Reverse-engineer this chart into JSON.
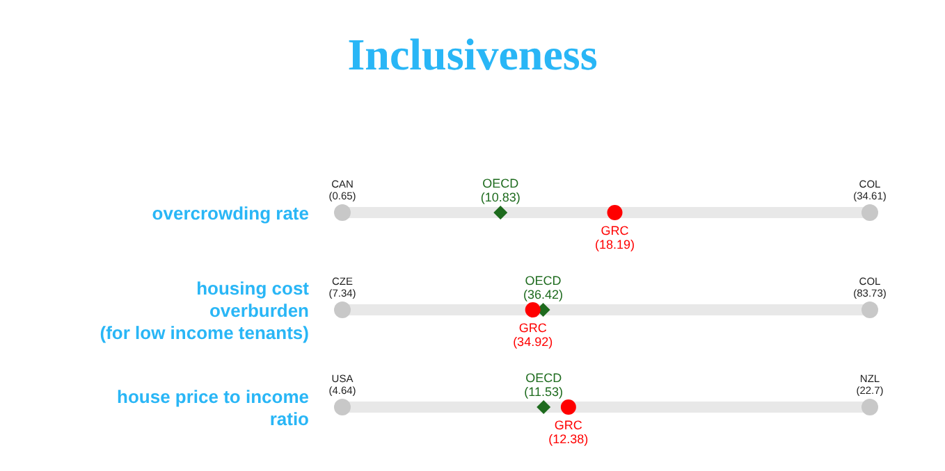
{
  "chart_data": {
    "type": "other",
    "title": "Inclusiveness",
    "categories": [
      "overcrowding rate",
      "housing cost\noverburden\n(for low income tenants)",
      "house price to income\nratio"
    ],
    "series": [
      {
        "color": "#c8c8c8",
        "values": [
          0.65,
          7.34,
          4.64
        ],
        "value_labels": [
          "(0.65)",
          "(7.34)",
          "(4.64)"
        ]
      },
      {
        "color": "#c8c8c8",
        "values": [
          34.61,
          83.73,
          22.7
        ],
        "value_labels": [
          "(34.61)",
          "(83.73)",
          "(22.7)"
        ]
      },
      {
        "name": "OECD",
        "color": "#1e6b1e",
        "marker": "diamond",
        "values": [
          10.83,
          36.42,
          11.53
        ],
        "value_labels": [
          "(10.83)",
          "(36.42)",
          "(11.53)"
        ]
      },
      {
        "name": "GRC",
        "color": "#ff0000",
        "marker": "circle",
        "values": [
          18.19,
          34.92,
          12.38
        ],
        "value_labels": [
          "(18.19)",
          "(34.92)",
          "(12.38)"
        ]
      }
    ],
    "annotations": [
      "CAN",
      "COL",
      "CZE",
      "COL",
      "USA",
      "NZL"
    ]
  }
}
